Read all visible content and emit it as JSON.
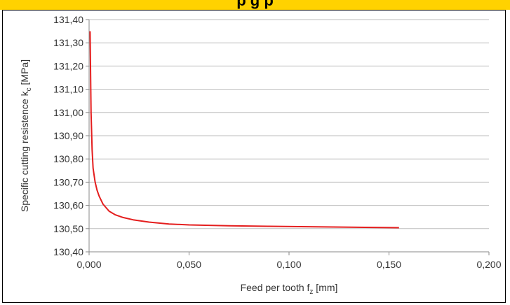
{
  "header": {
    "text": "p  g  p"
  },
  "chart_data": {
    "type": "line",
    "xlabel": "Feed per tooth f",
    "xlabel_sub": "z",
    "xlabel_unit": " [mm]",
    "ylabel": "Specific cutting resistence k",
    "ylabel_sub": "c",
    "ylabel_unit": " [MPa]",
    "xlim": [
      0,
      0.2
    ],
    "ylim": [
      130.4,
      131.4
    ],
    "x_ticks": [
      "0,000",
      "0,050",
      "0,100",
      "0,150",
      "0,200"
    ],
    "y_ticks": [
      "130,40",
      "130,50",
      "130,60",
      "130,70",
      "130,80",
      "130,90",
      "131,00",
      "131,10",
      "131,20",
      "131,30",
      "131,40"
    ],
    "grid": "horizontal",
    "series": [
      {
        "color": "#e41e1e",
        "x": [
          0.0005,
          0.001,
          0.0015,
          0.002,
          0.003,
          0.004,
          0.005,
          0.007,
          0.01,
          0.013,
          0.017,
          0.022,
          0.03,
          0.04,
          0.05,
          0.07,
          0.09,
          0.11,
          0.13,
          0.155
        ],
        "y": [
          131.35,
          131.0,
          130.84,
          130.76,
          130.7,
          130.665,
          130.64,
          130.605,
          130.575,
          130.56,
          130.548,
          130.538,
          130.528,
          130.52,
          130.516,
          130.512,
          130.51,
          130.508,
          130.506,
          130.504
        ]
      }
    ]
  }
}
